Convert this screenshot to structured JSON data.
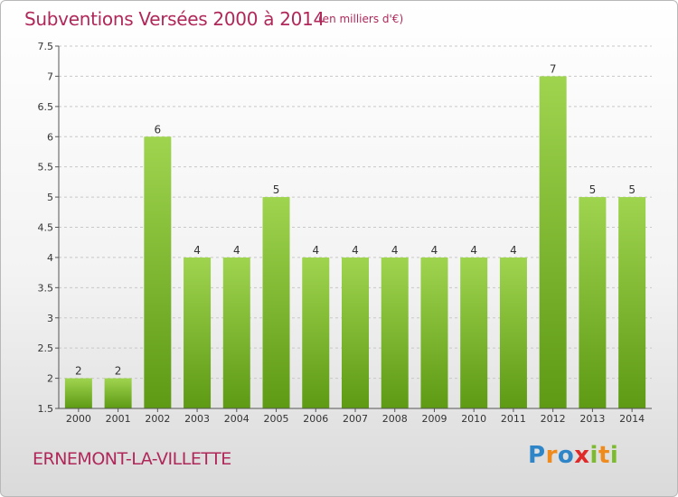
{
  "header": {
    "title": "Subventions Versées 2000 à 2014",
    "subtitle": "(en milliers d'€)"
  },
  "footer": {
    "commune": "ERNEMONT-LA-VILLETTE",
    "logo_letters": [
      {
        "ch": "P",
        "color": "#2e86c8"
      },
      {
        "ch": "r",
        "color": "#ef8a1c"
      },
      {
        "ch": "o",
        "color": "#2e86c8"
      },
      {
        "ch": "x",
        "color": "#e02a2a"
      },
      {
        "ch": "i",
        "color": "#7dbb2e"
      },
      {
        "ch": "t",
        "color": "#ef8a1c"
      },
      {
        "ch": "i",
        "color": "#7dbb2e"
      }
    ]
  },
  "colors": {
    "bar_top": "#9fd44f",
    "bar_bottom": "#5e9a14",
    "grid": "#c8c8c8",
    "axis": "#555555"
  },
  "chart_data": {
    "type": "bar",
    "categories": [
      "2000",
      "2001",
      "2002",
      "2003",
      "2004",
      "2005",
      "2006",
      "2007",
      "2008",
      "2009",
      "2010",
      "2011",
      "2012",
      "2013",
      "2014"
    ],
    "values": [
      2,
      2,
      6,
      4,
      4,
      5,
      4,
      4,
      4,
      4,
      4,
      4,
      7,
      5,
      5
    ],
    "value_labels": [
      "2",
      "2",
      "6",
      "4",
      "4",
      "5",
      "4",
      "4",
      "4",
      "4",
      "4",
      "4",
      "7",
      "5",
      "5"
    ],
    "ylim": [
      1.5,
      7.5
    ],
    "yticks": [
      "1.5",
      "2",
      "2.5",
      "3",
      "3.5",
      "4",
      "4.5",
      "5",
      "5.5",
      "6",
      "6.5",
      "7",
      "7.5"
    ],
    "grid": "horizontal dashed",
    "xlabel": "",
    "ylabel": ""
  }
}
